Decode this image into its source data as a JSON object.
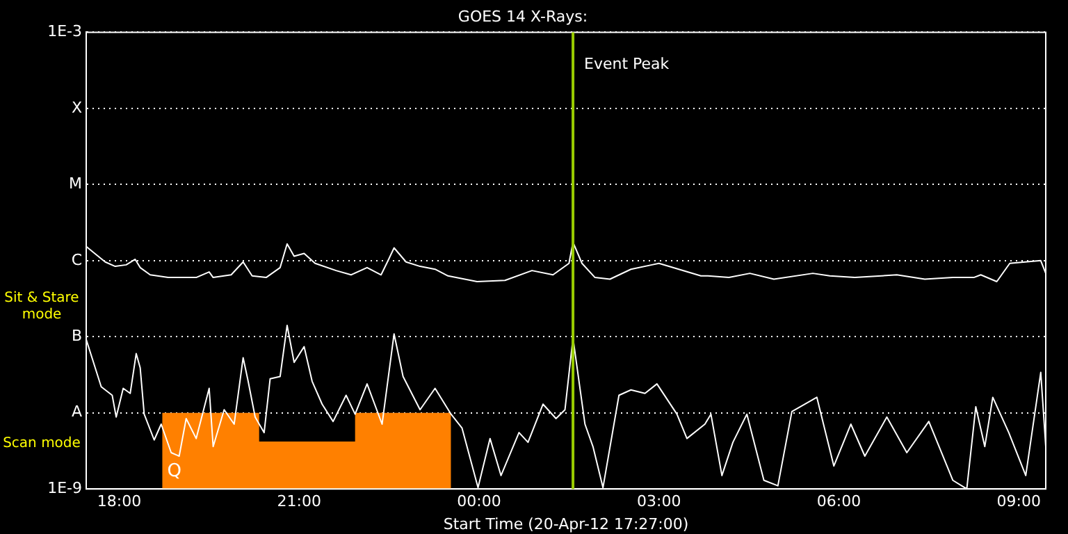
{
  "chart_data": {
    "type": "line",
    "title": "GOES 14 X-Rays:",
    "xlabel": "Start Time (20-Apr-12 17:27:00)",
    "log": "y",
    "grid": "y",
    "line_style": "solid",
    "xlim": [
      "--04-20T17:27",
      "--04-21T09:27"
    ],
    "xticks": [
      {
        "value": "--04-20T18:00",
        "label": "18:00"
      },
      {
        "value": "--04-20T21:00",
        "label": "21:00"
      },
      {
        "value": "--04-21T00:00",
        "label": "00:00"
      },
      {
        "value": "--04-21T03:00",
        "label": "03:00"
      },
      {
        "value": "--04-21T06:00",
        "label": "06:00"
      },
      {
        "value": "--04-21T09:00",
        "label": "09:00"
      }
    ],
    "ylim": [
      1e-09,
      0.001
    ],
    "yticks": [
      {
        "value": 1e-09,
        "label": "1E-9"
      },
      {
        "value": 1e-08,
        "label": "A"
      },
      {
        "value": 1e-07,
        "label": "B"
      },
      {
        "value": 1e-06,
        "label": "C"
      },
      {
        "value": 1e-05,
        "label": "M"
      },
      {
        "value": 0.0001,
        "label": "X"
      },
      {
        "value": 0.001,
        "label": "1E-3"
      }
    ],
    "series": [
      {
        "type": "area",
        "color": "#ff8000",
        "x": [
          "--04-20T18:43",
          "--04-20T20:20",
          "--04-20T20:20",
          "--04-20T21:56",
          "--04-20T21:56",
          "--04-20T23:32"
        ],
        "values": [
          1e-08,
          1e-08,
          4.2e-09,
          4.2e-09,
          1e-08,
          1e-08
        ]
      },
      {
        "type": "line",
        "color": "#ffffff",
        "x": [
          "--04-20T17:27",
          "--04-20T17:34",
          "--04-20T17:46",
          "--04-20T17:56",
          "--04-20T18:07",
          "--04-20T18:16",
          "--04-20T18:21",
          "--04-20T18:31",
          "--04-20T18:49",
          "--04-20T19:17",
          "--04-20T19:30",
          "--04-20T19:34",
          "--04-20T19:52",
          "--04-20T20:04",
          "--04-20T20:13",
          "--04-20T20:27",
          "--04-20T20:41",
          "--04-20T20:48",
          "--04-20T20:55",
          "--04-20T21:05",
          "--04-20T21:16",
          "--04-20T21:37",
          "--04-20T21:52",
          "--04-20T22:08",
          "--04-20T22:22",
          "--04-20T22:29",
          "--04-20T22:35",
          "--04-20T22:47",
          "--04-20T23:01",
          "--04-20T23:16",
          "--04-20T23:29",
          "--04-20T23:58",
          "--04-21T00:26",
          "--04-21T00:53",
          "--04-21T01:14",
          "--04-21T01:30",
          "--04-21T01:34",
          "--04-21T01:43",
          "--04-21T01:56",
          "--04-21T02:11",
          "--04-21T02:32",
          "--04-21T02:53",
          "--04-21T03:00",
          "--04-21T03:14",
          "--04-21T03:42",
          "--04-21T03:49",
          "--04-21T04:10",
          "--04-21T04:31",
          "--04-21T04:55",
          "--04-21T05:34",
          "--04-21T05:51",
          "--04-21T06:16",
          "--04-21T06:58",
          "--04-21T07:26",
          "--04-21T07:54",
          "--04-21T08:15",
          "--04-21T08:22",
          "--04-21T08:38",
          "--04-21T08:51",
          "--04-21T09:22",
          "--04-21T09:27"
        ],
        "values": [
          1.53e-06,
          1.29e-06,
          9.6e-07,
          8.4e-07,
          8.8e-07,
          1.04e-06,
          8.1e-07,
          6.5e-07,
          6e-07,
          6e-07,
          7.1e-07,
          6e-07,
          6.5e-07,
          9.6e-07,
          6.3e-07,
          6e-07,
          8.1e-07,
          1.66e-06,
          1.14e-06,
          1.24e-06,
          9.2e-07,
          7.4e-07,
          6.5e-07,
          8.1e-07,
          6.5e-07,
          1e-06,
          1.47e-06,
          9.6e-07,
          8.4e-07,
          7.7e-07,
          6.3e-07,
          5.3e-07,
          5.5e-07,
          7.4e-07,
          6.5e-07,
          9.2e-07,
          1.74e-06,
          9.2e-07,
          6e-07,
          5.7e-07,
          7.7e-07,
          8.8e-07,
          9.2e-07,
          8.1e-07,
          6.3e-07,
          6.3e-07,
          6e-07,
          6.8e-07,
          5.7e-07,
          6.8e-07,
          6.3e-07,
          6e-07,
          6.5e-07,
          5.7e-07,
          6e-07,
          6e-07,
          6.5e-07,
          5.3e-07,
          9.2e-07,
          1e-06,
          6.8e-07
        ]
      },
      {
        "type": "line",
        "color": "#ffffff",
        "x": [
          "--04-20T17:27",
          "--04-20T17:42",
          "--04-20T17:53",
          "--04-20T17:57",
          "--04-20T18:04",
          "--04-20T18:11",
          "--04-20T18:17",
          "--04-20T18:21",
          "--04-20T18:25",
          "--04-20T18:35",
          "--04-20T18:42",
          "--04-20T18:52",
          "--04-20T19:00",
          "--04-20T19:07",
          "--04-20T19:17",
          "--04-20T19:30",
          "--04-20T19:34",
          "--04-20T19:45",
          "--04-20T19:55",
          "--04-20T20:04",
          "--04-20T20:09",
          "--04-20T20:16",
          "--04-20T20:25",
          "--04-20T20:31",
          "--04-20T20:41",
          "--04-20T20:48",
          "--04-20T20:55",
          "--04-20T21:05",
          "--04-20T21:13",
          "--04-20T21:23",
          "--04-20T21:34",
          "--04-20T21:47",
          "--04-20T21:56",
          "--04-20T22:08",
          "--04-20T22:23",
          "--04-20T22:35",
          "--04-20T22:44",
          "--04-20T23:01",
          "--04-20T23:16",
          "--04-20T23:32",
          "--04-20T23:43",
          "--04-20T23:59",
          "--04-21T00:11",
          "--04-21T00:22",
          "--04-21T00:40",
          "--04-21T00:49",
          "--04-21T01:04",
          "--04-21T01:17",
          "--04-21T01:26",
          "--04-21T01:34",
          "--04-21T01:46",
          "--04-21T01:54",
          "--04-21T02:04",
          "--04-21T02:20",
          "--04-21T02:32",
          "--04-21T02:46",
          "--04-21T02:58",
          "--04-21T03:18",
          "--04-21T03:28",
          "--04-21T03:46",
          "--04-21T03:52",
          "--04-21T04:03",
          "--04-21T04:14",
          "--04-21T04:28",
          "--04-21T04:45",
          "--04-21T04:59",
          "--04-21T05:13",
          "--04-21T05:38",
          "--04-21T05:55",
          "--04-21T06:12",
          "--04-21T06:26",
          "--04-21T06:48",
          "--04-21T07:08",
          "--04-21T07:30",
          "--04-21T07:54",
          "--04-21T08:08",
          "--04-21T08:17",
          "--04-21T08:26",
          "--04-21T08:34",
          "--04-21T08:50",
          "--04-21T09:07",
          "--04-21T09:22",
          "--04-21T09:27"
        ],
        "values": [
          9.2e-08,
          2.2e-08,
          1.7e-08,
          8.8e-09,
          2.1e-08,
          1.8e-08,
          6e-08,
          3.9e-08,
          9.6e-09,
          4.4e-09,
          7.1e-09,
          3e-09,
          2.7e-09,
          8.4e-09,
          4.6e-09,
          2.1e-08,
          3.6e-09,
          1.1e-08,
          7.1e-09,
          5.3e-08,
          2.6e-08,
          8.8e-09,
          5.5e-09,
          2.8e-08,
          3e-08,
          1.41e-07,
          4.6e-08,
          7.4e-08,
          2.6e-08,
          1.3e-08,
          7.7e-09,
          1.7e-08,
          9.6e-09,
          2.4e-08,
          7.1e-09,
          1.09e-07,
          3e-08,
          1.1e-08,
          2.1e-08,
          9.6e-09,
          6.3e-09,
          1.04e-09,
          4.6e-09,
          1.5e-09,
          5.5e-09,
          4.1e-09,
          1.3e-08,
          8.4e-09,
          1.1e-08,
          9.6e-08,
          7.1e-09,
          3.6e-09,
          1.04e-09,
          1.7e-08,
          2e-08,
          1.8e-08,
          2.4e-08,
          9.6e-09,
          4.6e-09,
          7.1e-09,
          9.6e-09,
          1.5e-09,
          4.1e-09,
          9.6e-09,
          1.3e-09,
          1.1e-09,
          1.04e-08,
          1.6e-08,
          2e-09,
          7.1e-09,
          2.7e-09,
          8.8e-09,
          3e-09,
          7.7e-09,
          1.3e-09,
          1e-09,
          1.2e-08,
          3.6e-09,
          1.6e-08,
          5.5e-09,
          1.5e-09,
          3.4e-08,
          3.6e-09
        ]
      }
    ],
    "ref_lines": [
      {
        "axis": "x",
        "value": "--04-21T01:34",
        "label": "Event Peak",
        "color": "#99cc00"
      }
    ],
    "annotations": [
      "Sit & Stare mode",
      "Scan mode",
      {
        "text": "Q",
        "x": "--04-20T18:48",
        "y": 1.7e-09
      }
    ]
  }
}
